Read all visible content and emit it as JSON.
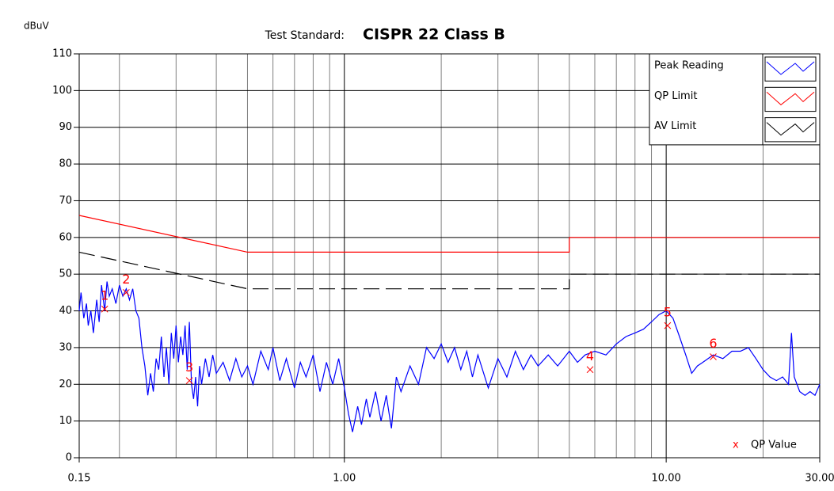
{
  "chart_data": {
    "type": "line",
    "y_label": "dBuV",
    "title_label": "Test Standard:",
    "title": "CISPR 22 Class B",
    "xscale": "log",
    "xlim": [
      0.15,
      30
    ],
    "ylim": [
      0,
      110
    ],
    "yticks": [
      0,
      10,
      20,
      30,
      40,
      50,
      60,
      70,
      80,
      90,
      100,
      110
    ],
    "xticks": [
      {
        "value": 0.15,
        "label": "0.15"
      },
      {
        "value": 1,
        "label": "1.00"
      },
      {
        "value": 10,
        "label": "10.00"
      },
      {
        "value": 30,
        "label": "30.00"
      }
    ],
    "xgrid": [
      0.2,
      0.3,
      0.4,
      0.5,
      0.6,
      0.7,
      0.8,
      0.9,
      1,
      2,
      3,
      4,
      5,
      6,
      7,
      8,
      9,
      10,
      20
    ],
    "xgrid_major": [
      1,
      10
    ],
    "grid": true,
    "legend": "upper right",
    "series": [
      {
        "name": "Peak Reading",
        "color": "#0000ff",
        "x": [
          0.15,
          0.152,
          0.155,
          0.158,
          0.16,
          0.163,
          0.166,
          0.17,
          0.173,
          0.176,
          0.18,
          0.183,
          0.186,
          0.19,
          0.195,
          0.2,
          0.205,
          0.21,
          0.215,
          0.22,
          0.225,
          0.23,
          0.235,
          0.24,
          0.245,
          0.25,
          0.255,
          0.26,
          0.265,
          0.27,
          0.275,
          0.28,
          0.285,
          0.29,
          0.295,
          0.3,
          0.305,
          0.31,
          0.315,
          0.32,
          0.325,
          0.33,
          0.335,
          0.34,
          0.345,
          0.35,
          0.355,
          0.36,
          0.37,
          0.38,
          0.39,
          0.4,
          0.42,
          0.44,
          0.46,
          0.48,
          0.5,
          0.52,
          0.55,
          0.58,
          0.6,
          0.63,
          0.66,
          0.7,
          0.73,
          0.76,
          0.8,
          0.84,
          0.88,
          0.92,
          0.96,
          1.0,
          1.03,
          1.06,
          1.1,
          1.13,
          1.17,
          1.2,
          1.25,
          1.3,
          1.35,
          1.4,
          1.45,
          1.5,
          1.6,
          1.7,
          1.8,
          1.9,
          2.0,
          2.1,
          2.2,
          2.3,
          2.4,
          2.5,
          2.6,
          2.8,
          3.0,
          3.2,
          3.4,
          3.6,
          3.8,
          4.0,
          4.3,
          4.6,
          5.0,
          5.3,
          5.6,
          6.0,
          6.5,
          7.0,
          7.5,
          8.0,
          8.5,
          9.0,
          9.5,
          10.0,
          10.5,
          11.0,
          11.5,
          12.0,
          12.5,
          13.0,
          14.0,
          15.0,
          16.0,
          17.0,
          18.0,
          19.0,
          20.0,
          21.0,
          22.0,
          23.0,
          24.0,
          24.5,
          25.0,
          26.0,
          27.0,
          28.0,
          29.0,
          30.0
        ],
        "values": [
          40,
          45,
          38,
          42,
          36,
          40,
          34,
          43,
          37,
          47,
          40,
          48,
          44,
          46,
          42,
          47,
          44,
          46,
          43,
          46,
          40,
          38,
          30,
          25,
          17,
          23,
          18,
          27,
          24,
          33,
          22,
          30,
          20,
          34,
          27,
          36,
          26,
          33,
          28,
          36,
          24,
          37,
          20,
          16,
          22,
          14,
          25,
          20,
          27,
          22,
          28,
          23,
          26,
          21,
          27,
          22,
          25,
          20,
          29,
          24,
          30,
          21,
          27,
          19,
          26,
          22,
          28,
          18,
          26,
          20,
          27,
          19,
          12,
          7,
          14,
          9,
          16,
          11,
          18,
          10,
          17,
          8,
          22,
          18,
          25,
          20,
          30,
          27,
          31,
          26,
          30,
          24,
          29,
          22,
          28,
          19,
          27,
          22,
          29,
          24,
          28,
          25,
          28,
          25,
          29,
          26,
          28,
          29,
          28,
          31,
          33,
          34,
          35,
          37,
          39,
          40,
          38,
          33,
          28,
          23,
          25,
          26,
          28,
          27,
          29,
          29,
          30,
          27,
          24,
          22,
          21,
          22,
          20,
          34,
          22,
          18,
          17,
          18,
          17,
          20
        ]
      },
      {
        "name": "QP Limit",
        "color": "#ff0000",
        "x": [
          0.15,
          0.5,
          5,
          5,
          30
        ],
        "values": [
          66,
          56,
          56,
          60,
          60
        ]
      },
      {
        "name": "AV Limit",
        "color": "#000000",
        "dash": true,
        "x": [
          0.15,
          0.5,
          5,
          5,
          30
        ],
        "values": [
          56,
          46,
          46,
          50,
          50
        ]
      }
    ],
    "qp_values": {
      "name": "QP Value",
      "marker": "x",
      "color": "#ff0000",
      "x": [
        0.18,
        0.21,
        0.33,
        5.8,
        10.1,
        14
      ],
      "values": [
        40.5,
        45,
        21,
        24,
        36,
        27.5
      ],
      "labels": [
        "1",
        "2",
        "3",
        "4",
        "5",
        "6"
      ]
    }
  }
}
